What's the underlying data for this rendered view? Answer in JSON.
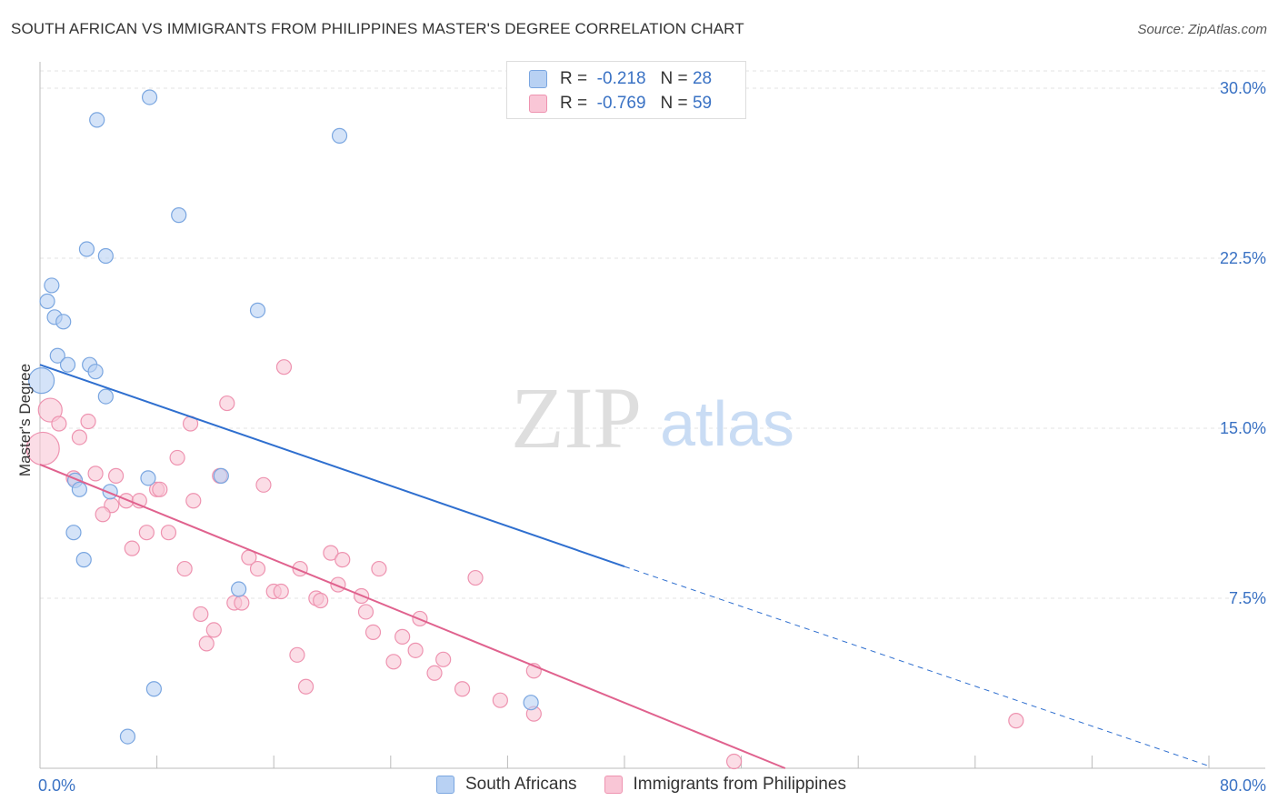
{
  "title": "SOUTH AFRICAN VS IMMIGRANTS FROM PHILIPPINES MASTER'S DEGREE CORRELATION CHART",
  "source": "Source: ZipAtlas.com",
  "watermark": {
    "zip": "ZIP",
    "atlas": "atlas"
  },
  "legend_top": [
    {
      "r_label": "R =",
      "r_value": "-0.218",
      "n_label": "N =",
      "n_value": "28"
    },
    {
      "r_label": "R =",
      "r_value": "-0.769",
      "n_label": "N =",
      "n_value": "59"
    }
  ],
  "legend_bottom": [
    "South Africans",
    "Immigrants from Philippines"
  ],
  "colors": {
    "blue_fill": "#b8d1f3",
    "blue_stroke": "#7aa6e0",
    "blue_line": "#2f6fcf",
    "pink_fill": "#f9c6d6",
    "pink_stroke": "#ee93b0",
    "pink_line": "#e0628e",
    "tick_text": "#3a72c4",
    "grid": "#e3e3e3"
  },
  "chart_data": {
    "type": "scatter",
    "title": "SOUTH AFRICAN VS IMMIGRANTS FROM PHILIPPINES MASTER'S DEGREE CORRELATION CHART",
    "xlabel": "",
    "ylabel": "Master's Degree",
    "xlim": [
      0,
      80
    ],
    "ylim": [
      0,
      31
    ],
    "x_tick_labels": [
      {
        "value": 0,
        "label": "0.0%"
      },
      {
        "value": 80,
        "label": "80.0%"
      }
    ],
    "y_ticks": [
      {
        "value": 7.5,
        "label": "7.5%"
      },
      {
        "value": 15,
        "label": "15.0%"
      },
      {
        "value": 22.5,
        "label": "22.5%"
      },
      {
        "value": 30,
        "label": "30.0%"
      }
    ],
    "x_minor_ticks": [
      0,
      8,
      16,
      24,
      32,
      40,
      48,
      56,
      64,
      72,
      80
    ],
    "series": [
      {
        "name": "South Africans",
        "r": -0.218,
        "n": 28,
        "points": [
          [
            7.5,
            29.6
          ],
          [
            3.9,
            28.6
          ],
          [
            20.5,
            27.9
          ],
          [
            9.5,
            24.4
          ],
          [
            3.2,
            22.9
          ],
          [
            4.5,
            22.6
          ],
          [
            0.8,
            21.3
          ],
          [
            0.5,
            20.6
          ],
          [
            1.0,
            19.9
          ],
          [
            1.6,
            19.7
          ],
          [
            14.9,
            20.2
          ],
          [
            1.2,
            18.2
          ],
          [
            1.9,
            17.8
          ],
          [
            3.4,
            17.8
          ],
          [
            3.8,
            17.5
          ],
          [
            0.1,
            17.1
          ],
          [
            4.5,
            16.4
          ],
          [
            2.4,
            12.7
          ],
          [
            2.7,
            12.3
          ],
          [
            4.8,
            12.2
          ],
          [
            7.4,
            12.8
          ],
          [
            12.4,
            12.9
          ],
          [
            2.3,
            10.4
          ],
          [
            3.0,
            9.2
          ],
          [
            13.6,
            7.9
          ],
          [
            7.8,
            3.5
          ],
          [
            6.0,
            1.4
          ],
          [
            33.6,
            2.9
          ]
        ],
        "sizes": {
          "0.1,17.1": 14
        },
        "trend": {
          "x1": 0,
          "y1": 17.8,
          "x2": 40,
          "y2": 8.9,
          "dash_to_x": 80,
          "dash_to_y": 0.1
        }
      },
      {
        "name": "Immigrants from Philippines",
        "r": -0.769,
        "n": 59,
        "points": [
          [
            0.2,
            14.1
          ],
          [
            0.7,
            15.8
          ],
          [
            1.3,
            15.2
          ],
          [
            3.3,
            15.3
          ],
          [
            2.7,
            14.6
          ],
          [
            16.7,
            17.7
          ],
          [
            12.8,
            16.1
          ],
          [
            10.3,
            15.2
          ],
          [
            9.4,
            13.7
          ],
          [
            2.3,
            12.8
          ],
          [
            3.8,
            13.0
          ],
          [
            5.2,
            12.9
          ],
          [
            12.3,
            12.9
          ],
          [
            15.3,
            12.5
          ],
          [
            8.0,
            12.3
          ],
          [
            8.2,
            12.3
          ],
          [
            5.9,
            11.8
          ],
          [
            6.8,
            11.8
          ],
          [
            4.9,
            11.6
          ],
          [
            4.3,
            11.2
          ],
          [
            10.5,
            11.8
          ],
          [
            7.3,
            10.4
          ],
          [
            8.8,
            10.4
          ],
          [
            6.3,
            9.7
          ],
          [
            14.3,
            9.3
          ],
          [
            19.9,
            9.5
          ],
          [
            20.7,
            9.2
          ],
          [
            14.9,
            8.8
          ],
          [
            17.8,
            8.8
          ],
          [
            23.2,
            8.8
          ],
          [
            9.9,
            8.8
          ],
          [
            29.8,
            8.4
          ],
          [
            20.4,
            8.1
          ],
          [
            16.0,
            7.8
          ],
          [
            16.5,
            7.8
          ],
          [
            18.9,
            7.5
          ],
          [
            22.0,
            7.6
          ],
          [
            13.3,
            7.3
          ],
          [
            13.8,
            7.3
          ],
          [
            19.2,
            7.4
          ],
          [
            11.0,
            6.8
          ],
          [
            22.3,
            6.9
          ],
          [
            26.0,
            6.6
          ],
          [
            11.9,
            6.1
          ],
          [
            22.8,
            6.0
          ],
          [
            24.8,
            5.8
          ],
          [
            11.4,
            5.5
          ],
          [
            25.7,
            5.2
          ],
          [
            17.6,
            5.0
          ],
          [
            27.6,
            4.8
          ],
          [
            24.2,
            4.7
          ],
          [
            27.0,
            4.2
          ],
          [
            33.8,
            4.3
          ],
          [
            18.2,
            3.6
          ],
          [
            28.9,
            3.5
          ],
          [
            31.5,
            3.0
          ],
          [
            33.8,
            2.4
          ],
          [
            66.8,
            2.1
          ],
          [
            47.5,
            0.3
          ]
        ],
        "sizes": {
          "0.2,14.1": 18,
          "0.7,15.8": 13
        },
        "trend": {
          "x1": 0,
          "y1": 13.4,
          "x2": 51,
          "y2": 0
        }
      }
    ]
  }
}
